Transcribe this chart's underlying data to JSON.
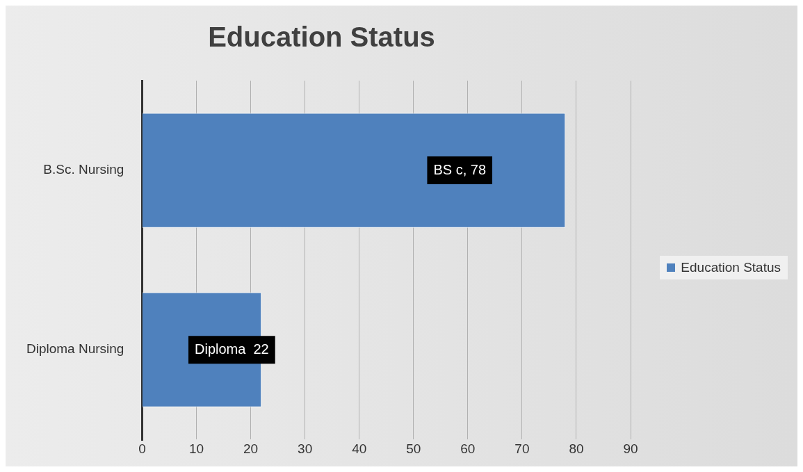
{
  "chart_data": {
    "type": "bar",
    "title": "Education Status",
    "orientation": "horizontal",
    "categories": [
      "B.Sc. Nursing",
      "Diploma Nursing"
    ],
    "series": [
      {
        "name": "Education Status",
        "color": "#4f81bd",
        "values": [
          78,
          22
        ],
        "value_labels": [
          "BS c, 78",
          "Diploma  22"
        ]
      }
    ],
    "xlim": [
      0,
      90
    ],
    "xticks": [
      0,
      10,
      20,
      30,
      40,
      50,
      60,
      70,
      80,
      90
    ],
    "grid": "x",
    "legend": "right"
  }
}
